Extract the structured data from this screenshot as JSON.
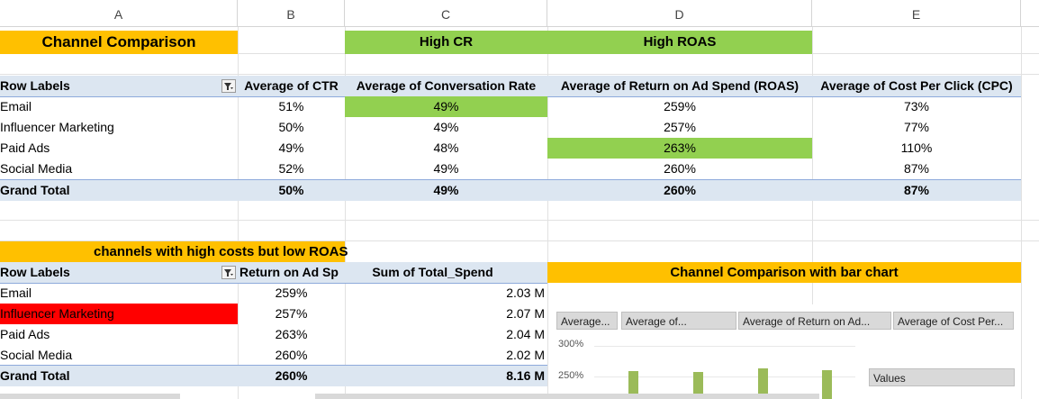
{
  "columns": [
    "A",
    "B",
    "C",
    "D",
    "E"
  ],
  "header_labels": {
    "title": "Channel Comparison",
    "high_cr": "High CR",
    "high_roas": "High ROAS"
  },
  "pivot1": {
    "headers": [
      "Row Labels",
      "Average of CTR",
      "Average of Conversation Rate",
      "Average of Return on Ad Spend (ROAS)",
      "Average of Cost Per Click (CPC)"
    ],
    "rows": [
      {
        "label": "Email",
        "ctr": "51%",
        "cr": "49%",
        "roas": "259%",
        "cpc": "73%"
      },
      {
        "label": "Influencer Marketing",
        "ctr": "50%",
        "cr": "49%",
        "roas": "257%",
        "cpc": "77%"
      },
      {
        "label": "Paid Ads",
        "ctr": "49%",
        "cr": "48%",
        "roas": "263%",
        "cpc": "110%"
      },
      {
        "label": "Social Media",
        "ctr": "52%",
        "cr": "49%",
        "roas": "260%",
        "cpc": "87%"
      }
    ],
    "total": {
      "label": "Grand Total",
      "ctr": "50%",
      "cr": "49%",
      "roas": "260%",
      "cpc": "87%"
    }
  },
  "section2_title": "channels with high  costs but low ROAS",
  "pivot2": {
    "headers": [
      "Row Labels",
      "Return on Ad Sp",
      "Sum of Total_Spend"
    ],
    "rows": [
      {
        "label": "Email",
        "roas": "259%",
        "spend": "2.03 M"
      },
      {
        "label": "Influencer Marketing",
        "roas": "257%",
        "spend": "2.07 M"
      },
      {
        "label": "Paid Ads",
        "roas": "263%",
        "spend": "2.04 M"
      },
      {
        "label": "Social Media",
        "roas": "260%",
        "spend": "2.02 M"
      }
    ],
    "total": {
      "label": "Grand Total",
      "roas": "260%",
      "spend": "8.16 M"
    }
  },
  "chart_title": "Channel Comparison  with bar chart",
  "chart": {
    "field_buttons": [
      "Average...",
      "Average of...",
      "Average of Return on Ad...",
      "Average of Cost Per..."
    ],
    "y_ticks": [
      "300%",
      "250%"
    ],
    "values_label": "Values"
  },
  "colors": {
    "orange": "#ffc000",
    "green": "#92d050",
    "red": "#ff0000",
    "band": "#dce6f1",
    "bar": "#9bbb59"
  }
}
